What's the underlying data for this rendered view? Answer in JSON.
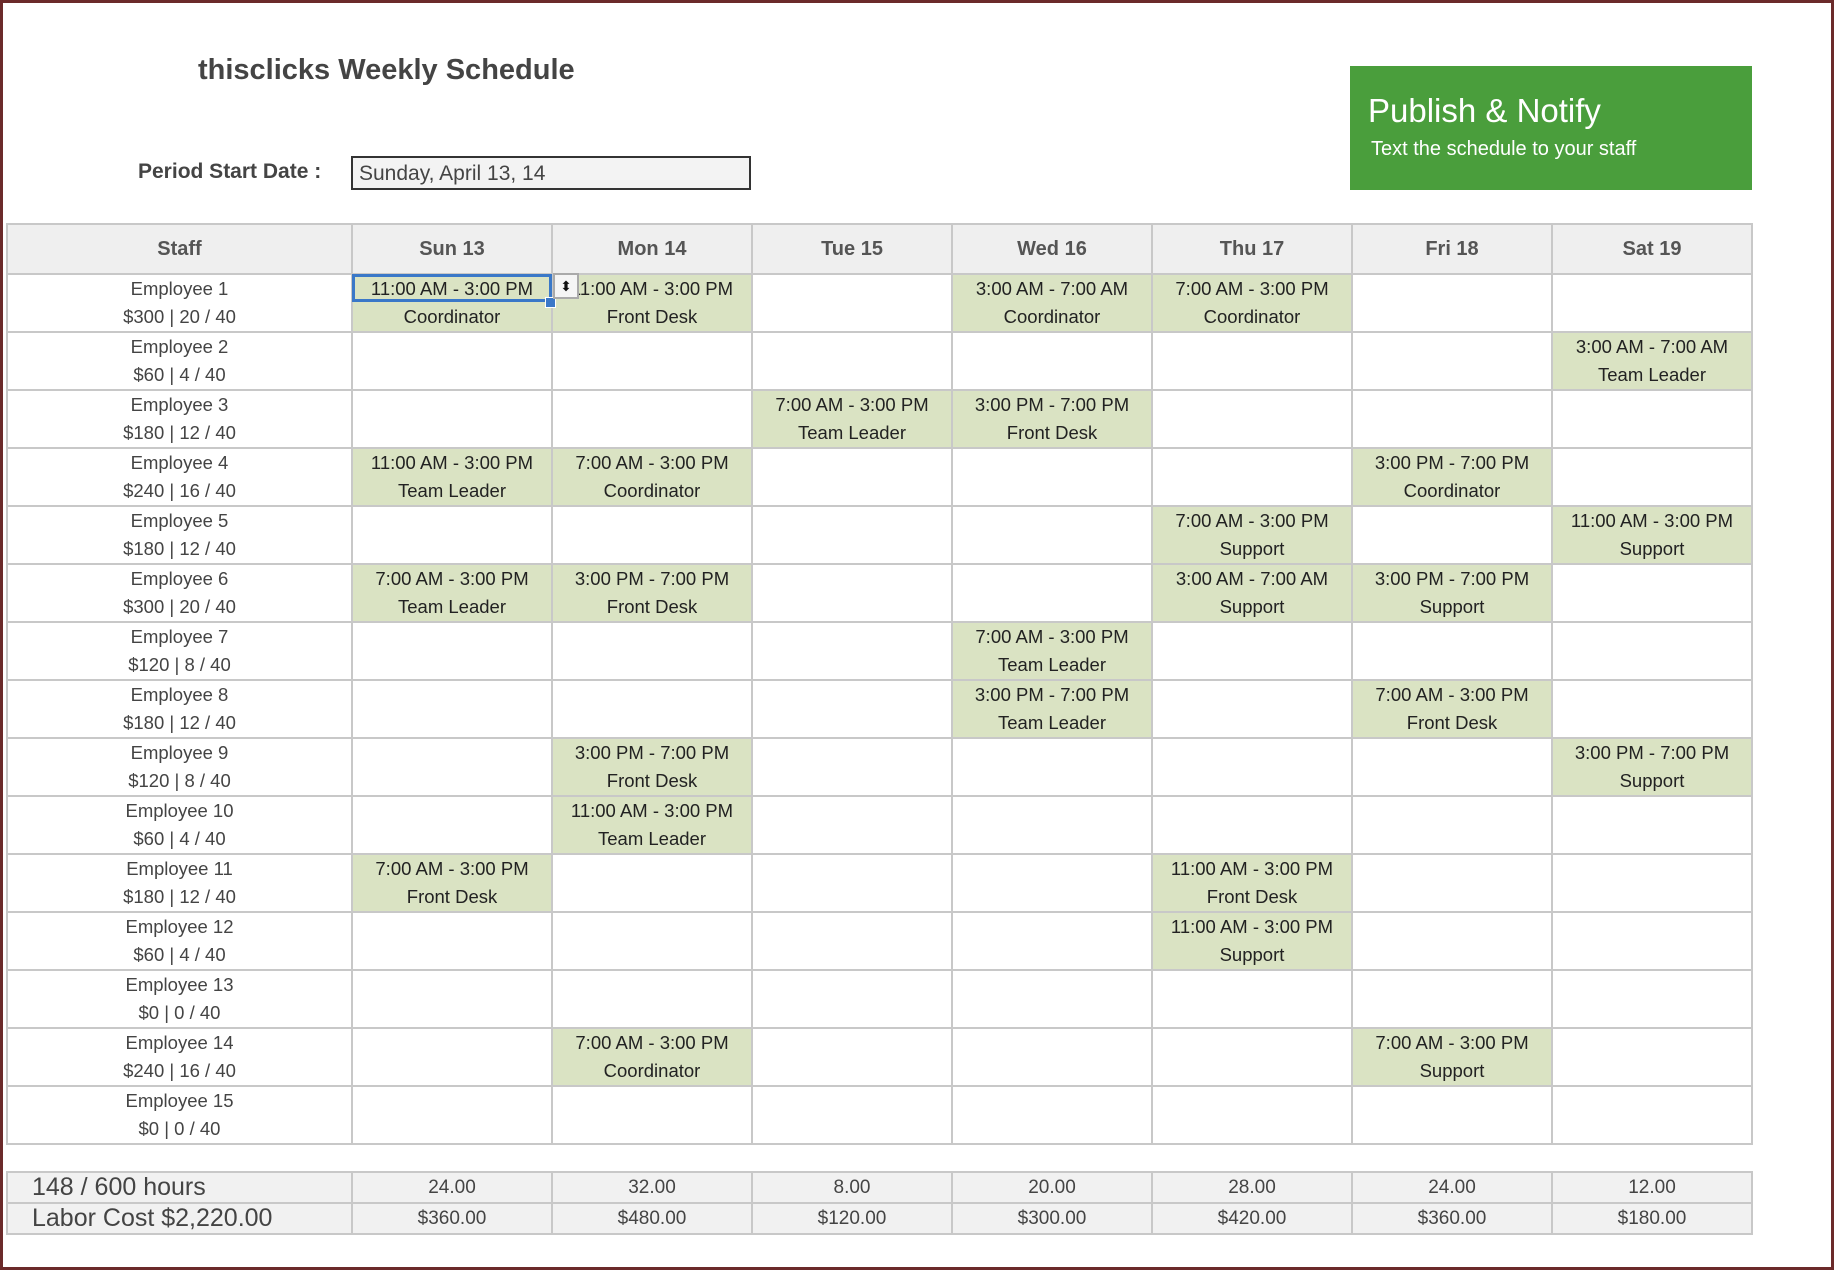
{
  "title": "thisclicks Weekly Schedule",
  "period": {
    "label": "Period Start Date :",
    "value": "Sunday, April 13, 14"
  },
  "publish": {
    "title": "Publish & Notify",
    "subtitle": "Text the schedule to your staff",
    "color": "#4a9e3c"
  },
  "colors": {
    "shift_fill": "#dae3c3",
    "selection": "#3a78c8",
    "frame": "#6b2a2a"
  },
  "headers": [
    "Staff",
    "Sun 13",
    "Mon 14",
    "Tue 15",
    "Wed 16",
    "Thu 17",
    "Fri 18",
    "Sat 19"
  ],
  "employees": [
    {
      "name": "Employee 1",
      "stats": "$300 | 20 / 40",
      "shifts": [
        {
          "time": "11:00 AM - 3:00 PM",
          "role": "Coordinator"
        },
        {
          "time": "11:00 AM - 3:00 PM",
          "role": "Front Desk"
        },
        null,
        {
          "time": "3:00 AM - 7:00 AM",
          "role": "Coordinator"
        },
        {
          "time": "7:00 AM - 3:00 PM",
          "role": "Coordinator"
        },
        null,
        null
      ]
    },
    {
      "name": "Employee 2",
      "stats": "$60 | 4 / 40",
      "shifts": [
        null,
        null,
        null,
        null,
        null,
        null,
        {
          "time": "3:00 AM - 7:00 AM",
          "role": "Team Leader"
        }
      ]
    },
    {
      "name": "Employee 3",
      "stats": "$180 | 12 / 40",
      "shifts": [
        null,
        null,
        {
          "time": "7:00 AM - 3:00 PM",
          "role": "Team Leader"
        },
        {
          "time": "3:00 PM - 7:00 PM",
          "role": "Front Desk"
        },
        null,
        null,
        null
      ]
    },
    {
      "name": "Employee 4",
      "stats": "$240 | 16 / 40",
      "shifts": [
        {
          "time": "11:00 AM - 3:00 PM",
          "role": "Team Leader"
        },
        {
          "time": "7:00 AM - 3:00 PM",
          "role": "Coordinator"
        },
        null,
        null,
        null,
        {
          "time": "3:00 PM - 7:00 PM",
          "role": "Coordinator"
        },
        null
      ]
    },
    {
      "name": "Employee 5",
      "stats": "$180 | 12 / 40",
      "shifts": [
        null,
        null,
        null,
        null,
        {
          "time": "7:00 AM - 3:00 PM",
          "role": "Support"
        },
        null,
        {
          "time": "11:00 AM - 3:00 PM",
          "role": "Support"
        }
      ]
    },
    {
      "name": "Employee 6",
      "stats": "$300 | 20 / 40",
      "shifts": [
        {
          "time": "7:00 AM - 3:00 PM",
          "role": "Team Leader"
        },
        {
          "time": "3:00 PM - 7:00 PM",
          "role": "Front Desk"
        },
        null,
        null,
        {
          "time": "3:00 AM - 7:00 AM",
          "role": "Support"
        },
        {
          "time": "3:00 PM - 7:00 PM",
          "role": "Support"
        },
        null
      ]
    },
    {
      "name": "Employee 7",
      "stats": "$120 | 8 / 40",
      "shifts": [
        null,
        null,
        null,
        {
          "time": "7:00 AM - 3:00 PM",
          "role": "Team Leader"
        },
        null,
        null,
        null
      ]
    },
    {
      "name": "Employee 8",
      "stats": "$180 | 12 / 40",
      "shifts": [
        null,
        null,
        null,
        {
          "time": "3:00 PM - 7:00 PM",
          "role": "Team Leader"
        },
        null,
        {
          "time": "7:00 AM - 3:00 PM",
          "role": "Front Desk"
        },
        null
      ]
    },
    {
      "name": "Employee 9",
      "stats": "$120 | 8 / 40",
      "shifts": [
        null,
        {
          "time": "3:00 PM - 7:00 PM",
          "role": "Front Desk"
        },
        null,
        null,
        null,
        null,
        {
          "time": "3:00 PM - 7:00 PM",
          "role": "Support"
        }
      ]
    },
    {
      "name": "Employee 10",
      "stats": "$60 | 4 / 40",
      "shifts": [
        null,
        {
          "time": "11:00 AM - 3:00 PM",
          "role": "Team Leader"
        },
        null,
        null,
        null,
        null,
        null
      ]
    },
    {
      "name": "Employee 11",
      "stats": "$180 | 12 / 40",
      "shifts": [
        {
          "time": "7:00 AM - 3:00 PM",
          "role": "Front Desk"
        },
        null,
        null,
        null,
        {
          "time": "11:00 AM - 3:00 PM",
          "role": "Front Desk"
        },
        null,
        null
      ]
    },
    {
      "name": "Employee 12",
      "stats": "$60 | 4 / 40",
      "shifts": [
        null,
        null,
        null,
        null,
        {
          "time": "11:00 AM - 3:00 PM",
          "role": "Support"
        },
        null,
        null
      ]
    },
    {
      "name": "Employee 13",
      "stats": "$0 | 0 / 40",
      "shifts": [
        null,
        null,
        null,
        null,
        null,
        null,
        null
      ]
    },
    {
      "name": "Employee 14",
      "stats": "$240 | 16 / 40",
      "shifts": [
        null,
        {
          "time": "7:00 AM - 3:00 PM",
          "role": "Coordinator"
        },
        null,
        null,
        null,
        {
          "time": "7:00 AM - 3:00 PM",
          "role": "Support"
        },
        null
      ]
    },
    {
      "name": "Employee 15",
      "stats": "$0 | 0 / 40",
      "shifts": [
        null,
        null,
        null,
        null,
        null,
        null,
        null
      ]
    }
  ],
  "summary": {
    "hours_label": "148 / 600 hours",
    "cost_label": "Labor Cost $2,220.00",
    "hours": [
      "24.00",
      "32.00",
      "8.00",
      "20.00",
      "28.00",
      "24.00",
      "12.00"
    ],
    "costs": [
      "$360.00",
      "$480.00",
      "$120.00",
      "$300.00",
      "$420.00",
      "$360.00",
      "$180.00"
    ]
  }
}
